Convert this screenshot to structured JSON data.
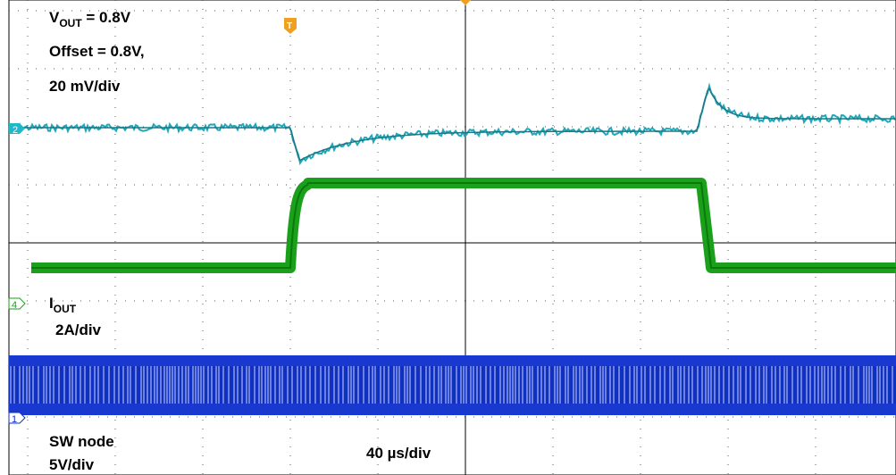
{
  "channel_2": {
    "marker": "2",
    "label_main": "V",
    "label_sub": "OUT",
    "label_rest": " = 0.8V",
    "offset": "Offset = 0.8V,",
    "scale": "20 mV/div"
  },
  "channel_4": {
    "marker": "4",
    "label_main": "I",
    "label_sub": "OUT",
    "scale": "2A/div"
  },
  "channel_1": {
    "marker": "1",
    "label": "SW node",
    "scale": "5V/div"
  },
  "trigger": {
    "marker": "T"
  },
  "timebase": "40 µs/div"
}
